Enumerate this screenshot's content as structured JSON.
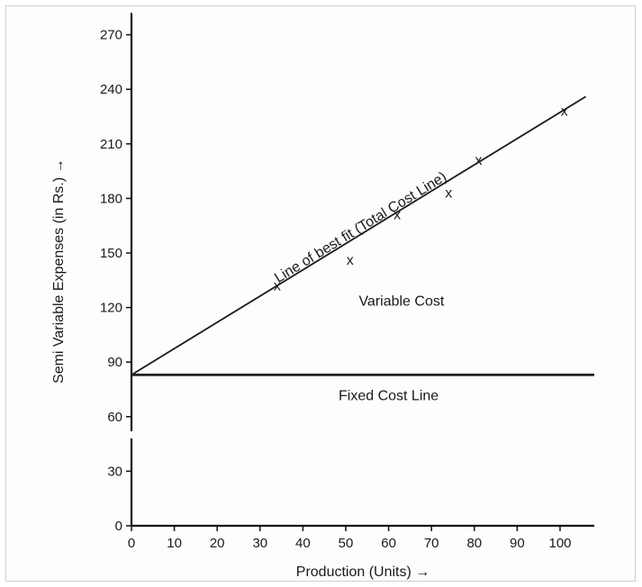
{
  "chart_data": {
    "type": "line",
    "title": "",
    "xlabel": "Production (Units) →",
    "ylabel": "Semi Variable Expenses (in Rs.) →",
    "xlim": [
      0,
      108
    ],
    "ylim": [
      0,
      280
    ],
    "x_ticks": [
      0,
      10,
      20,
      30,
      40,
      50,
      60,
      70,
      80,
      90,
      100
    ],
    "y_ticks": [
      0,
      30,
      60,
      90,
      120,
      150,
      180,
      210,
      240,
      270
    ],
    "y_axis_break": true,
    "grid": false,
    "series": [
      {
        "kind": "line",
        "name": "Line of best fit (Total Cost Line)",
        "x": [
          0,
          106
        ],
        "y": [
          83,
          236
        ]
      },
      {
        "kind": "line",
        "name": "Fixed Cost Line",
        "x": [
          0,
          108
        ],
        "y": [
          83,
          83
        ]
      },
      {
        "kind": "scatter",
        "marker": "x",
        "x": [
          34,
          51,
          62,
          74,
          81,
          101
        ],
        "y": [
          132,
          146,
          171,
          183,
          201,
          228
        ]
      }
    ],
    "annotations": [
      {
        "text": "Line of best fit (Total Cost Line)",
        "x": 54,
        "y": 162
      },
      {
        "text": "Variable Cost",
        "x": 63,
        "y": 121
      },
      {
        "text": "Fixed Cost Line",
        "x": 60,
        "y": 69
      }
    ]
  }
}
